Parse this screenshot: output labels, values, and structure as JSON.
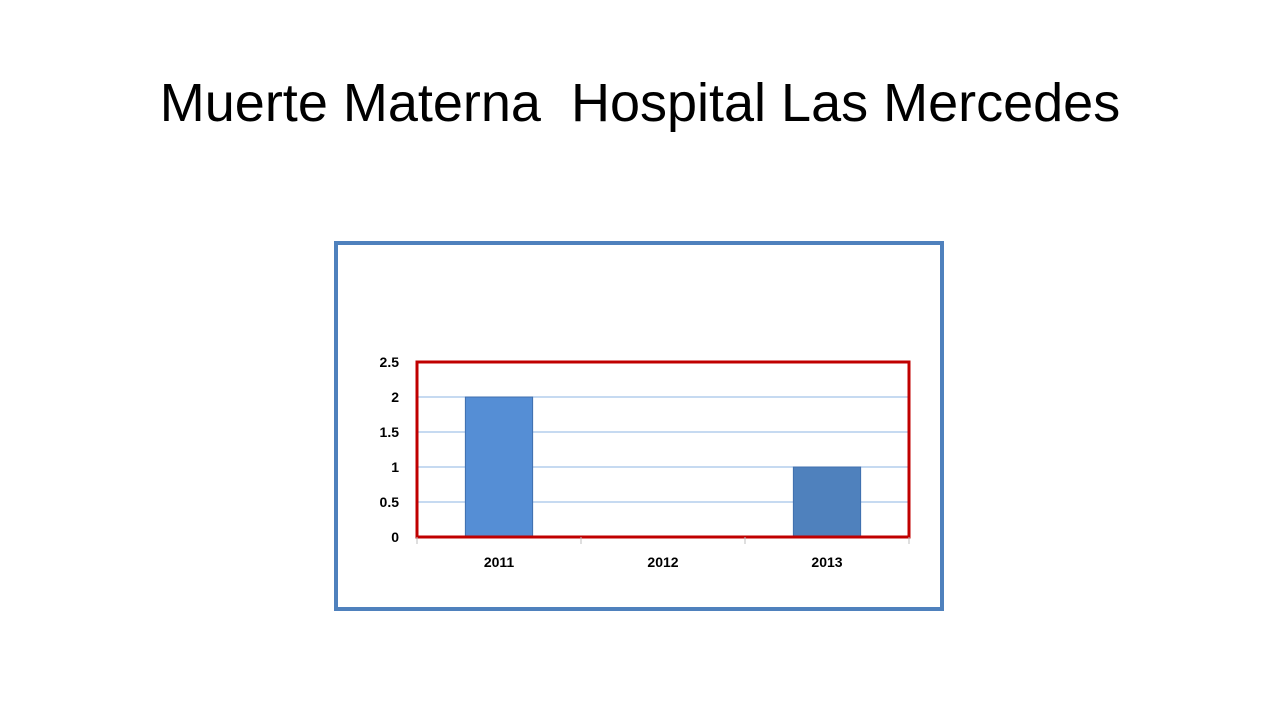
{
  "slide": {
    "title": "Muerte Materna  Hospital Las Mercedes"
  },
  "colors": {
    "frame_border": "#4f81bd",
    "plot_border": "#c00000",
    "gridline": "#8eb4e3",
    "bar_fill": [
      "#558ed5",
      "#558ed5",
      "#4f81bd"
    ],
    "bar_stroke": "#3f6fae"
  },
  "chart_data": {
    "type": "bar",
    "categories": [
      "2011",
      "2012",
      "2013"
    ],
    "values": [
      2,
      0,
      1
    ],
    "ylim": [
      0,
      2.5
    ],
    "yticks": [
      0,
      0.5,
      1,
      1.5,
      2,
      2.5
    ],
    "ytick_labels": [
      "0",
      "0.5",
      "1",
      "1.5",
      "2",
      "2.5"
    ],
    "grid": true,
    "legend": "none"
  }
}
